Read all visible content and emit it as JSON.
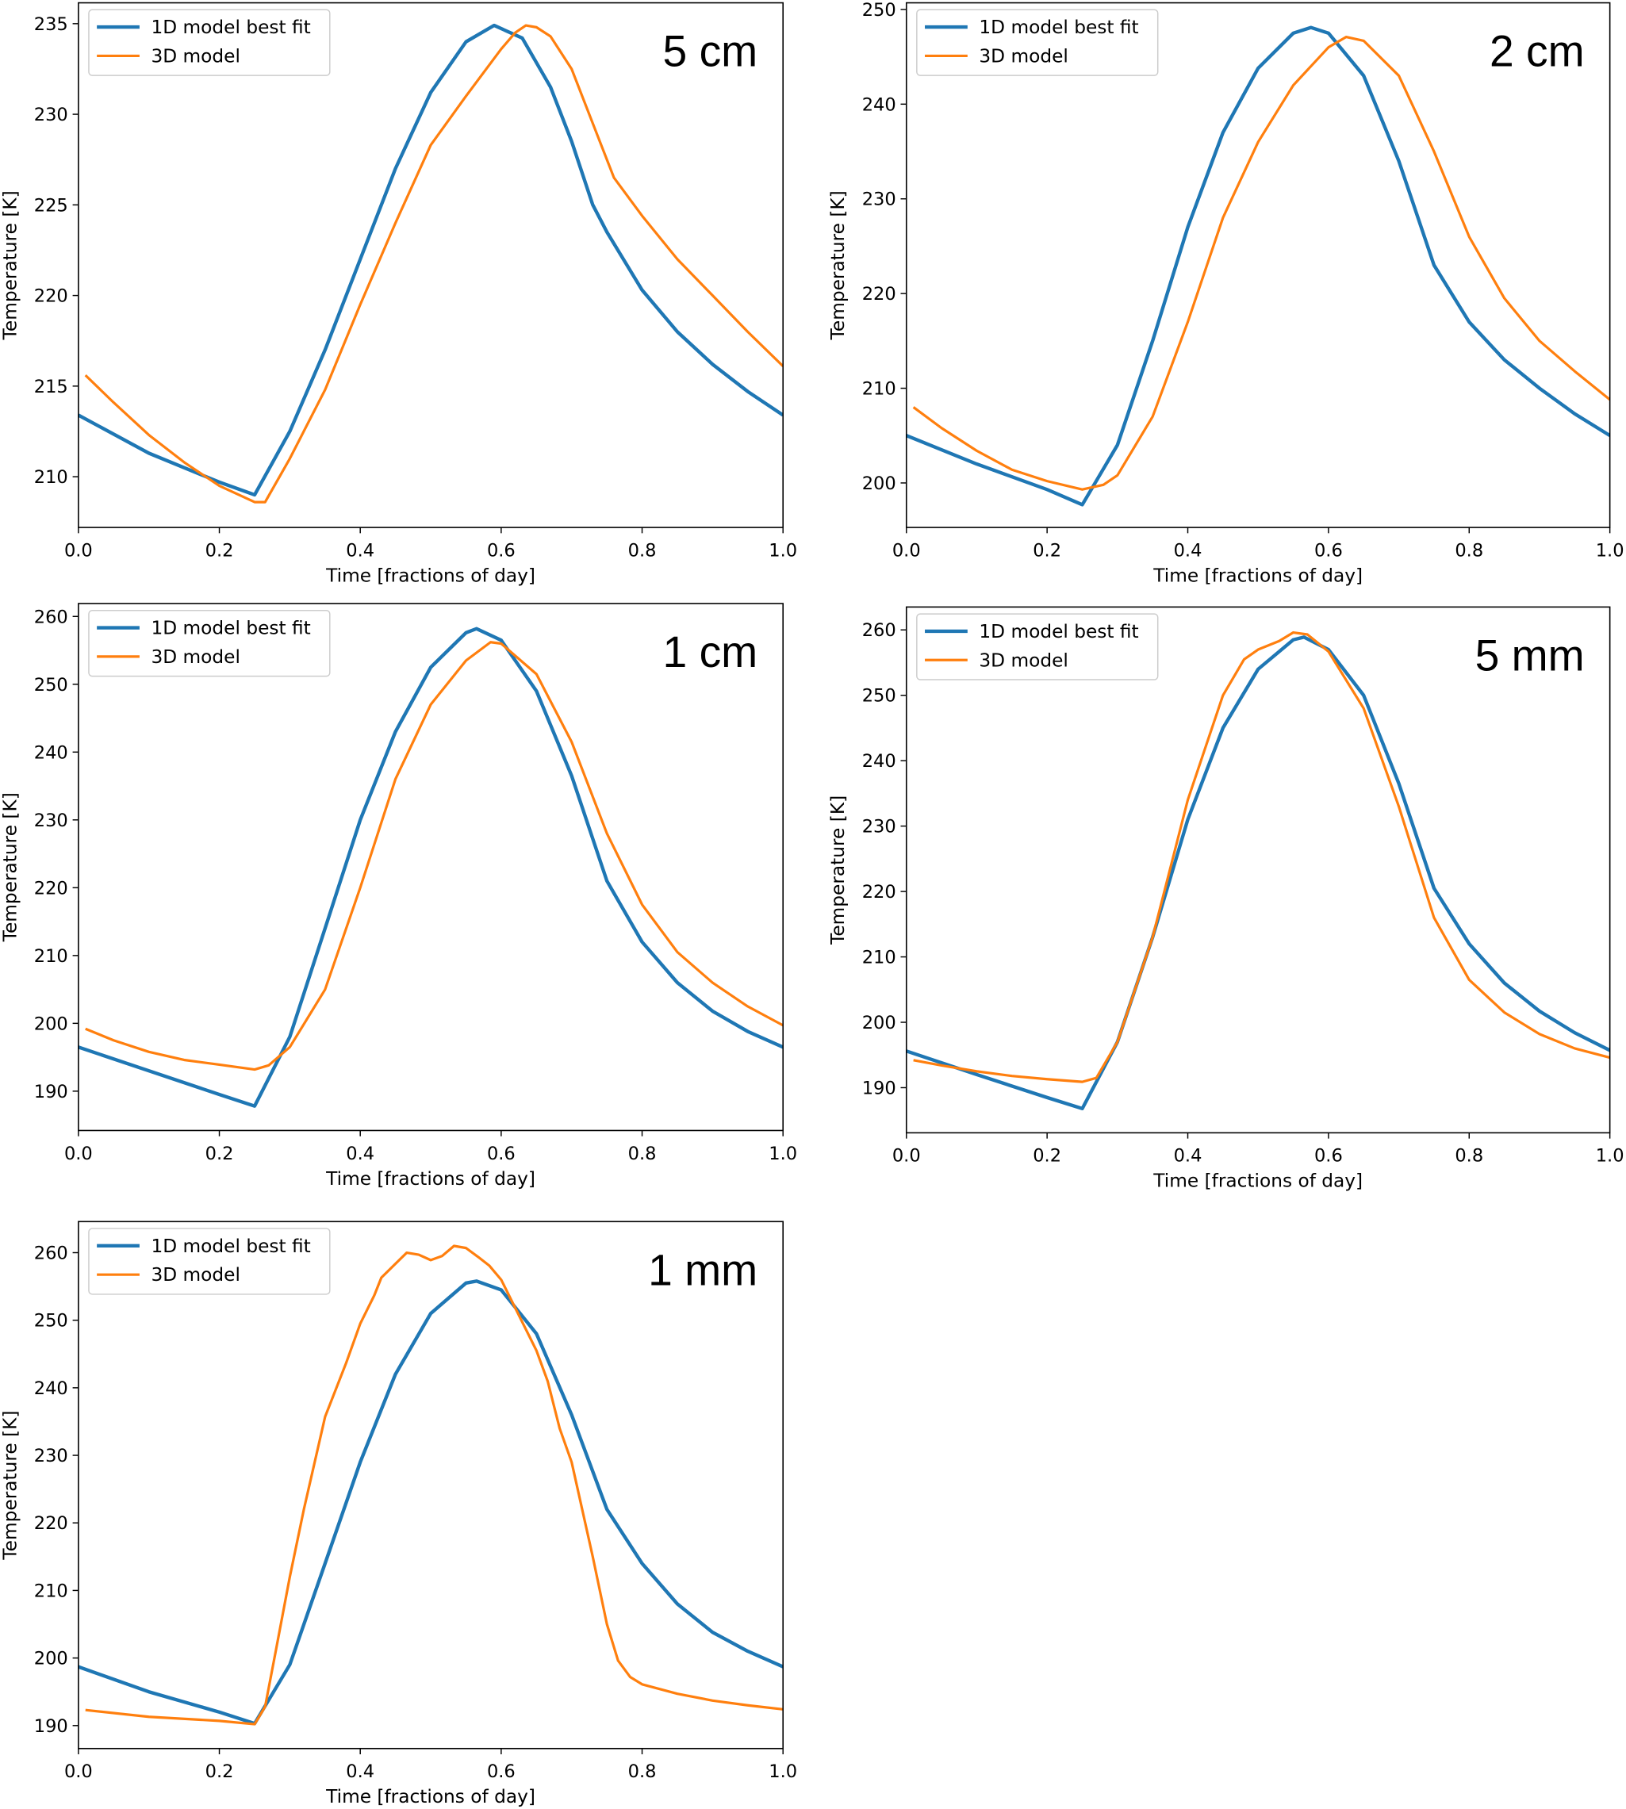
{
  "colors": {
    "series_1d": "#1f77b4",
    "series_3d": "#ff7f0e",
    "legend_border": "#cccccc"
  },
  "chart_data": [
    {
      "type": "line",
      "annotation": "5 cm",
      "xlabel": "Time [fractions of day]",
      "ylabel": "Temperature [K]",
      "xlim": [
        0,
        1
      ],
      "ylim": [
        207.2,
        236.15
      ],
      "xticks": [
        "0.0",
        "0.2",
        "0.4",
        "0.6",
        "0.8",
        "1.0"
      ],
      "yticks": [
        "210",
        "215",
        "220",
        "225",
        "230",
        "235"
      ],
      "legend": "top-left",
      "grid": false,
      "series": [
        {
          "name": "1D model best fit",
          "x": [
            0,
            0.1,
            0.2,
            0.25,
            0.3,
            0.35,
            0.4,
            0.45,
            0.5,
            0.55,
            0.59,
            0.63,
            0.67,
            0.7,
            0.73,
            0.75,
            0.8,
            0.85,
            0.9,
            0.95,
            1.0
          ],
          "y": [
            213.4,
            211.3,
            209.7,
            209.0,
            212.5,
            217,
            222,
            227,
            231.2,
            234.0,
            234.9,
            234.2,
            231.5,
            228.5,
            225,
            223.5,
            220.3,
            218,
            216.2,
            214.7,
            213.4
          ]
        },
        {
          "name": "3D model",
          "x": [
            0.01,
            0.05,
            0.1,
            0.15,
            0.2,
            0.25,
            0.265,
            0.3,
            0.35,
            0.4,
            0.45,
            0.5,
            0.55,
            0.6,
            0.62,
            0.635,
            0.65,
            0.67,
            0.7,
            0.73,
            0.76,
            0.8,
            0.85,
            0.9,
            0.95,
            1.0
          ],
          "y": [
            215.6,
            214.1,
            212.3,
            210.8,
            209.5,
            208.6,
            208.6,
            211,
            214.8,
            219.5,
            224,
            228.3,
            231,
            233.6,
            234.5,
            234.9,
            234.8,
            234.3,
            232.5,
            229.5,
            226.5,
            224.4,
            222,
            220,
            218,
            216.1
          ]
        }
      ]
    },
    {
      "type": "line",
      "annotation": "2 cm",
      "xlabel": "Time [fractions of day]",
      "ylabel": "Temperature [K]",
      "xlim": [
        0,
        1
      ],
      "ylim": [
        195.3,
        250.7
      ],
      "xticks": [
        "0.0",
        "0.2",
        "0.4",
        "0.6",
        "0.8",
        "1.0"
      ],
      "yticks": [
        "200",
        "210",
        "220",
        "230",
        "240",
        "250"
      ],
      "legend": "top-left",
      "grid": false,
      "series": [
        {
          "name": "1D model best fit",
          "x": [
            0,
            0.1,
            0.2,
            0.25,
            0.3,
            0.35,
            0.4,
            0.45,
            0.5,
            0.55,
            0.575,
            0.6,
            0.65,
            0.7,
            0.75,
            0.8,
            0.85,
            0.9,
            0.95,
            1.0
          ],
          "y": [
            205,
            202,
            199.3,
            197.7,
            204,
            215,
            227,
            237,
            243.8,
            247.5,
            248.1,
            247.5,
            243,
            234,
            223,
            217,
            213,
            210,
            207.3,
            205
          ]
        },
        {
          "name": "3D model",
          "x": [
            0.01,
            0.05,
            0.1,
            0.15,
            0.2,
            0.25,
            0.28,
            0.3,
            0.35,
            0.4,
            0.45,
            0.5,
            0.55,
            0.6,
            0.625,
            0.65,
            0.7,
            0.75,
            0.8,
            0.85,
            0.9,
            0.95,
            1.0
          ],
          "y": [
            208,
            205.8,
            203.4,
            201.4,
            200.2,
            199.3,
            199.8,
            200.8,
            207,
            217,
            228,
            236,
            242,
            246,
            247.1,
            246.7,
            243,
            235,
            226,
            219.5,
            215,
            211.8,
            208.8
          ]
        }
      ]
    },
    {
      "type": "line",
      "annotation": "1 cm",
      "xlabel": "Time [fractions of day]",
      "ylabel": "Temperature [K]",
      "xlim": [
        0,
        1
      ],
      "ylim": [
        184.2,
        261.9
      ],
      "xticks": [
        "0.0",
        "0.2",
        "0.4",
        "0.6",
        "0.8",
        "1.0"
      ],
      "yticks": [
        "190",
        "200",
        "210",
        "220",
        "230",
        "240",
        "250",
        "260"
      ],
      "legend": "top-left",
      "grid": false,
      "series": [
        {
          "name": "1D model best fit",
          "x": [
            0,
            0.1,
            0.2,
            0.25,
            0.3,
            0.35,
            0.4,
            0.45,
            0.5,
            0.55,
            0.565,
            0.6,
            0.65,
            0.7,
            0.75,
            0.8,
            0.85,
            0.9,
            0.95,
            1.0
          ],
          "y": [
            196.5,
            193,
            189.5,
            187.8,
            198,
            214,
            230,
            243,
            252.5,
            257.6,
            258.2,
            256.5,
            249,
            236.5,
            221,
            212,
            206,
            201.8,
            198.8,
            196.5
          ]
        },
        {
          "name": "3D model",
          "x": [
            0.01,
            0.05,
            0.1,
            0.15,
            0.2,
            0.25,
            0.27,
            0.3,
            0.35,
            0.4,
            0.45,
            0.5,
            0.55,
            0.585,
            0.6,
            0.65,
            0.7,
            0.75,
            0.8,
            0.85,
            0.9,
            0.95,
            1.0
          ],
          "y": [
            199.2,
            197.5,
            195.8,
            194.6,
            193.9,
            193.2,
            193.8,
            196.5,
            205,
            220,
            236,
            247,
            253.5,
            256.2,
            256,
            251.5,
            241.5,
            228,
            217.5,
            210.5,
            206,
            202.5,
            199.7
          ]
        }
      ]
    },
    {
      "type": "line",
      "annotation": "5 mm",
      "xlabel": "Time [fractions of day]",
      "ylabel": "Temperature [K]",
      "xlim": [
        0,
        1
      ],
      "ylim": [
        183.1,
        263.5
      ],
      "xticks": [
        "0.0",
        "0.2",
        "0.4",
        "0.6",
        "0.8",
        "1.0"
      ],
      "yticks": [
        "190",
        "200",
        "210",
        "220",
        "230",
        "240",
        "250",
        "260"
      ],
      "legend": "top-left",
      "grid": false,
      "series": [
        {
          "name": "1D model best fit",
          "x": [
            0,
            0.1,
            0.2,
            0.25,
            0.3,
            0.35,
            0.4,
            0.45,
            0.5,
            0.55,
            0.565,
            0.6,
            0.65,
            0.7,
            0.75,
            0.8,
            0.85,
            0.9,
            0.95,
            1.0
          ],
          "y": [
            195.6,
            192,
            188.5,
            186.8,
            197,
            213,
            231,
            245,
            254,
            258.5,
            258.9,
            257,
            250,
            236.5,
            220.5,
            212,
            206,
            201.7,
            198.4,
            195.7
          ]
        },
        {
          "name": "3D model",
          "x": [
            0.01,
            0.05,
            0.1,
            0.15,
            0.2,
            0.25,
            0.27,
            0.3,
            0.35,
            0.4,
            0.45,
            0.48,
            0.5,
            0.53,
            0.55,
            0.57,
            0.6,
            0.65,
            0.7,
            0.75,
            0.8,
            0.85,
            0.9,
            0.95,
            1.0
          ],
          "y": [
            194.2,
            193.4,
            192.5,
            191.8,
            191.3,
            190.9,
            191.5,
            197,
            213,
            234,
            250,
            255.5,
            257,
            258.3,
            259.6,
            259.3,
            256.7,
            248,
            233,
            216,
            206.5,
            201.5,
            198.2,
            196,
            194.6
          ]
        }
      ]
    },
    {
      "type": "line",
      "annotation": "1 mm",
      "xlabel": "Time [fractions of day]",
      "ylabel": "Temperature [K]",
      "xlim": [
        0,
        1
      ],
      "ylim": [
        186.6,
        264.6
      ],
      "xticks": [
        "0.0",
        "0.2",
        "0.4",
        "0.6",
        "0.8",
        "1.0"
      ],
      "yticks": [
        "190",
        "200",
        "210",
        "220",
        "230",
        "240",
        "250",
        "260"
      ],
      "legend": "top-left",
      "grid": false,
      "series": [
        {
          "name": "1D model best fit",
          "x": [
            0,
            0.1,
            0.2,
            0.25,
            0.3,
            0.35,
            0.4,
            0.45,
            0.5,
            0.55,
            0.565,
            0.6,
            0.65,
            0.7,
            0.75,
            0.8,
            0.85,
            0.9,
            0.95,
            1.0
          ],
          "y": [
            198.7,
            195,
            192,
            190.3,
            199,
            214,
            229,
            242,
            251,
            255.5,
            255.8,
            254.5,
            248,
            236,
            222,
            214,
            208,
            203.8,
            201,
            198.7
          ]
        },
        {
          "name": "3D model",
          "x": [
            0.01,
            0.1,
            0.2,
            0.25,
            0.265,
            0.28,
            0.3,
            0.32,
            0.35,
            0.38,
            0.4,
            0.42,
            0.43,
            0.466,
            0.483,
            0.5,
            0.516,
            0.533,
            0.55,
            0.567,
            0.583,
            0.6,
            0.65,
            0.666,
            0.683,
            0.7,
            0.73,
            0.75,
            0.766,
            0.783,
            0.8,
            0.85,
            0.9,
            0.95,
            1.0
          ],
          "y": [
            192.3,
            191.3,
            190.7,
            190.2,
            192.8,
            201,
            212,
            222,
            235.7,
            243.7,
            249.5,
            253.7,
            256.3,
            260,
            259.7,
            258.9,
            259.5,
            261,
            260.7,
            259.4,
            258.1,
            256,
            245.5,
            241,
            234,
            229,
            215,
            205,
            199.6,
            197.2,
            196.1,
            194.7,
            193.7,
            193,
            192.4
          ]
        }
      ]
    }
  ]
}
